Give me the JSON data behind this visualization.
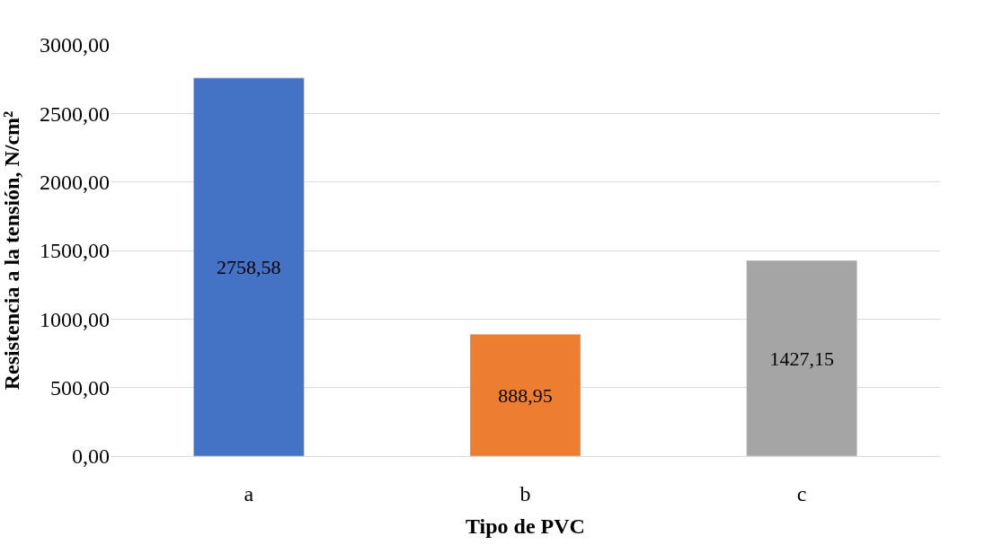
{
  "chart_data": {
    "type": "bar",
    "xlabel": "Tipo de PVC",
    "ylabel": "Resistencia a la tensión, N/cm²",
    "categories": [
      "a",
      "b",
      "c"
    ],
    "values": [
      2758.58,
      888.95,
      1427.15
    ],
    "value_labels": [
      "2758,58",
      "888,95",
      "1427,15"
    ],
    "colors": [
      "#4472c4",
      "#ed7d31",
      "#a5a5a5"
    ],
    "ylim": [
      0,
      3000
    ],
    "yticks": [
      {
        "value": 0,
        "label": "0,00"
      },
      {
        "value": 500,
        "label": "500,00"
      },
      {
        "value": 1000,
        "label": "1000,00"
      },
      {
        "value": 1500,
        "label": "1500,00"
      },
      {
        "value": 2000,
        "label": "2000,00"
      },
      {
        "value": 2500,
        "label": "2500,00"
      },
      {
        "value": 3000,
        "label": "3000,00"
      }
    ],
    "grid": "y"
  }
}
